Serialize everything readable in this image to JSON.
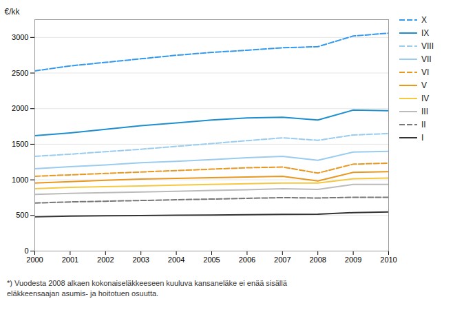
{
  "chart_data": {
    "type": "line",
    "caption": "*) Vuodesta 2008 alkaen kokonaiseläkkeeseen kuuluva kansaneläke ei enää sisällä\neläkkeensaajan asumis- ja hoitotuen osuutta.",
    "y_label": "€/kk",
    "x": [
      2000,
      2001,
      2002,
      2003,
      2004,
      2005,
      2006,
      2007,
      2008,
      2009,
      2010
    ],
    "xlim": [
      2000,
      2010
    ],
    "xticks": [
      2000,
      2001,
      2002,
      2003,
      2004,
      2005,
      2006,
      2007,
      2008,
      2009,
      2010
    ],
    "ylim": [
      0,
      3250
    ],
    "yticks": [
      0,
      500,
      1000,
      1500,
      2000,
      2500,
      3000
    ],
    "grid": true,
    "legend": "right",
    "series": [
      {
        "name": "X",
        "color": "#3399EE",
        "line_style": "dashed",
        "values": [
          2530,
          2600,
          2650,
          2700,
          2750,
          2790,
          2820,
          2855,
          2870,
          3020,
          3060
        ]
      },
      {
        "name": "IX",
        "color": "#1E8FCC",
        "line_style": "solid",
        "values": [
          1620,
          1660,
          1710,
          1760,
          1800,
          1840,
          1870,
          1880,
          1840,
          1980,
          1970
        ]
      },
      {
        "name": "VIII",
        "color": "#99CCEE",
        "line_style": "dashed",
        "values": [
          1330,
          1360,
          1395,
          1430,
          1470,
          1510,
          1550,
          1590,
          1555,
          1630,
          1650
        ]
      },
      {
        "name": "VII",
        "color": "#99CCEE",
        "line_style": "solid",
        "values": [
          1155,
          1185,
          1210,
          1240,
          1260,
          1285,
          1310,
          1330,
          1275,
          1390,
          1400
        ]
      },
      {
        "name": "VI",
        "color": "#E8971F",
        "line_style": "dashed",
        "values": [
          1050,
          1070,
          1090,
          1110,
          1130,
          1150,
          1170,
          1180,
          1095,
          1220,
          1235
        ]
      },
      {
        "name": "V",
        "color": "#E8971F",
        "line_style": "solid",
        "values": [
          955,
          975,
          995,
          1010,
          1020,
          1030,
          1040,
          1050,
          985,
          1105,
          1115
        ]
      },
      {
        "name": "IV",
        "color": "#F5C842",
        "line_style": "solid",
        "values": [
          875,
          895,
          905,
          915,
          925,
          935,
          945,
          955,
          955,
          1015,
          1025
        ]
      },
      {
        "name": "III",
        "color": "#BBBBBB",
        "line_style": "solid",
        "values": [
          795,
          810,
          820,
          830,
          840,
          850,
          860,
          875,
          865,
          935,
          935
        ]
      },
      {
        "name": "II",
        "color": "#777777",
        "line_style": "dashed",
        "values": [
          675,
          690,
          700,
          710,
          720,
          730,
          740,
          750,
          745,
          755,
          755
        ]
      },
      {
        "name": "I",
        "color": "#333333",
        "line_style": "solid",
        "values": [
          480,
          490,
          495,
          498,
          502,
          506,
          510,
          515,
          518,
          540,
          548
        ]
      }
    ]
  }
}
